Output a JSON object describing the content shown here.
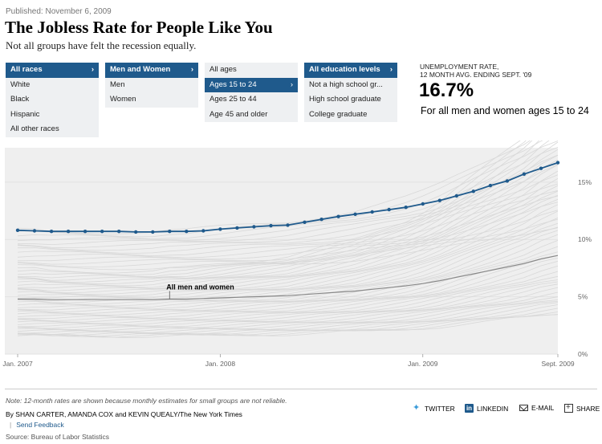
{
  "published": "Published: November 6, 2009",
  "headline": "The Jobless Rate for People Like You",
  "subhead": "Not all groups have felt the recession equally.",
  "filters": {
    "race": [
      {
        "label": "All races",
        "state": "selected"
      },
      {
        "label": "White",
        "state": "normal"
      },
      {
        "label": "Black",
        "state": "normal"
      },
      {
        "label": "Hispanic",
        "state": "normal"
      },
      {
        "label": "All other races",
        "state": "normal"
      }
    ],
    "sex": [
      {
        "label": "Men and Women",
        "state": "selected"
      },
      {
        "label": "Men",
        "state": "normal"
      },
      {
        "label": "Women",
        "state": "normal"
      }
    ],
    "age": [
      {
        "label": "All ages",
        "state": "normal"
      },
      {
        "label": "Ages 15 to 24",
        "state": "highlighted"
      },
      {
        "label": "Ages 25 to 44",
        "state": "normal"
      },
      {
        "label": "Age 45 and older",
        "state": "normal"
      }
    ],
    "education": [
      {
        "label": "All education levels",
        "state": "selected"
      },
      {
        "label": "Not a high school gr...",
        "state": "normal"
      },
      {
        "label": "High school graduate",
        "state": "normal"
      },
      {
        "label": "College graduate",
        "state": "normal"
      }
    ]
  },
  "rate": {
    "label_line1": "UNEMPLOYMENT RATE,",
    "label_line2": "12 MONTH AVG. ENDING SEPT. '09",
    "value": "16.7%",
    "description": "For all men and women ages 15 to 24"
  },
  "chart_data": {
    "type": "line",
    "x_ticks": [
      "Jan. 2007",
      "Jan. 2008",
      "Jan. 2009",
      "Sept. 2009"
    ],
    "x_tick_index": [
      0,
      12,
      24,
      32
    ],
    "y_ticks": [
      "0%",
      "5%",
      "10%",
      "15%"
    ],
    "y_tick_values": [
      0,
      5,
      10,
      15
    ],
    "ylim": [
      0,
      18
    ],
    "grid": true,
    "highlight_series": {
      "name": "Ages 15 to 24",
      "color": "#1f5a8c",
      "values": [
        10.8,
        10.75,
        10.7,
        10.7,
        10.7,
        10.7,
        10.7,
        10.65,
        10.65,
        10.7,
        10.7,
        10.75,
        10.9,
        11.0,
        11.1,
        11.2,
        11.25,
        11.5,
        11.75,
        12.0,
        12.2,
        12.4,
        12.6,
        12.8,
        13.1,
        13.4,
        13.8,
        14.2,
        14.7,
        15.1,
        15.7,
        16.2,
        16.7
      ]
    },
    "reference_series": {
      "name": "All men and women",
      "color": "#888888",
      "values": [
        4.8,
        4.8,
        4.75,
        4.75,
        4.75,
        4.75,
        4.75,
        4.75,
        4.75,
        4.8,
        4.8,
        4.85,
        4.9,
        4.95,
        5.0,
        5.05,
        5.1,
        5.2,
        5.3,
        5.4,
        5.5,
        5.65,
        5.8,
        5.95,
        6.15,
        6.4,
        6.7,
        7.0,
        7.3,
        7.6,
        7.9,
        8.3,
        8.6
      ]
    },
    "annotation": "All men and women",
    "background_series_color": "#d8d8d8"
  },
  "footer": {
    "note": "Note: 12-month rates are shown because monthly estimates for small groups are not reliable.",
    "byline": "By SHAN CARTER, AMANDA COX and KEVIN QUEALY/The New York Times",
    "feedback": "Send Feedback",
    "source": "Source: Bureau of Labor Statistics"
  },
  "share": {
    "twitter": "TWITTER",
    "linkedin": "LINKEDIN",
    "email": "E-MAIL",
    "share": "SHARE"
  },
  "colors": {
    "accent": "#1f5a8c",
    "menu_bg": "#eef0f2",
    "chart_bg": "#efefef"
  }
}
